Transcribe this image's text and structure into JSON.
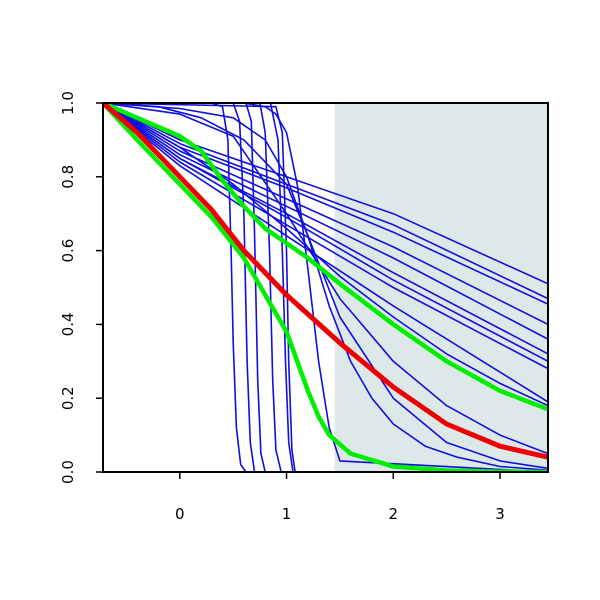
{
  "chart_data": {
    "type": "line",
    "title": "",
    "xlabel": "",
    "ylabel": "",
    "xlim": [
      -0.72,
      3.45
    ],
    "ylim": [
      0.0,
      1.0
    ],
    "x_ticks": [
      0,
      1,
      2,
      3
    ],
    "y_ticks": [
      0.0,
      0.2,
      0.4,
      0.6,
      0.8,
      1.0
    ],
    "x_tick_labels": [
      "0",
      "1",
      "2",
      "3"
    ],
    "y_tick_labels": [
      "0.0",
      "0.2",
      "0.4",
      "0.6",
      "0.8",
      "1.0"
    ],
    "grid": false,
    "shaded_region": {
      "x_start": 1.45,
      "x_end": 3.45,
      "color": "#dde9e9"
    },
    "series": [
      {
        "color": "#1010dd",
        "width": 1.6,
        "x": [
          -0.72,
          0.3,
          0.4,
          0.45,
          0.48,
          0.5,
          0.53,
          0.57,
          0.62,
          3.45
        ],
        "y": [
          1.0,
          1.0,
          0.99,
          0.9,
          0.6,
          0.35,
          0.12,
          0.02,
          0.0,
          0.0
        ]
      },
      {
        "color": "#1010dd",
        "width": 1.6,
        "x": [
          -0.72,
          0.5,
          0.56,
          0.6,
          0.63,
          0.66,
          0.7,
          3.45
        ],
        "y": [
          1.0,
          1.0,
          0.95,
          0.7,
          0.3,
          0.08,
          0.0,
          0.0
        ]
      },
      {
        "color": "#1010dd",
        "width": 1.6,
        "x": [
          -0.72,
          0.62,
          0.67,
          0.7,
          0.73,
          0.76,
          0.8,
          3.45
        ],
        "y": [
          1.0,
          1.0,
          0.95,
          0.65,
          0.25,
          0.05,
          0.0,
          0.0
        ]
      },
      {
        "color": "#1010dd",
        "width": 1.6,
        "x": [
          -0.72,
          0.75,
          0.8,
          0.84,
          0.87,
          0.9,
          0.95,
          3.45
        ],
        "y": [
          1.0,
          1.0,
          0.92,
          0.6,
          0.25,
          0.06,
          0.0,
          0.0
        ]
      },
      {
        "color": "#1010dd",
        "width": 1.6,
        "x": [
          -0.72,
          0.85,
          0.92,
          0.96,
          0.99,
          1.02,
          1.06,
          3.45
        ],
        "y": [
          1.0,
          1.0,
          0.9,
          0.6,
          0.3,
          0.08,
          0.0,
          0.0
        ]
      },
      {
        "color": "#1010dd",
        "width": 1.6,
        "x": [
          -0.72,
          0.9,
          0.96,
          1.0,
          1.02,
          1.05,
          1.08,
          3.45
        ],
        "y": [
          1.0,
          0.99,
          0.92,
          0.6,
          0.3,
          0.06,
          0.0,
          0.0
        ]
      },
      {
        "color": "#1010dd",
        "width": 1.6,
        "x": [
          -0.72,
          0.6,
          0.8,
          0.9,
          1.0,
          1.1,
          1.2,
          1.3,
          1.4,
          1.5,
          3.45
        ],
        "y": [
          1.0,
          1.0,
          0.99,
          0.97,
          0.92,
          0.78,
          0.55,
          0.3,
          0.12,
          0.03,
          0.0
        ]
      },
      {
        "color": "#1010dd",
        "width": 1.6,
        "x": [
          -0.72,
          -0.2,
          0.2,
          0.6,
          1.0,
          1.2,
          1.4,
          1.6,
          1.8,
          2.0,
          2.3,
          2.6,
          3.0,
          3.45
        ],
        "y": [
          1.0,
          0.99,
          0.96,
          0.9,
          0.78,
          0.64,
          0.45,
          0.3,
          0.2,
          0.13,
          0.07,
          0.04,
          0.015,
          0.005
        ]
      },
      {
        "color": "#1010dd",
        "width": 1.6,
        "x": [
          -0.72,
          0.0,
          1.0,
          2.0,
          3.45
        ],
        "y": [
          1.0,
          0.9,
          0.8,
          0.7,
          0.51
        ]
      },
      {
        "color": "#1010dd",
        "width": 1.6,
        "x": [
          -0.72,
          0.0,
          1.0,
          2.0,
          3.45
        ],
        "y": [
          1.0,
          0.89,
          0.78,
          0.67,
          0.47
        ]
      },
      {
        "color": "#1010dd",
        "width": 1.6,
        "x": [
          -0.72,
          0.0,
          1.0,
          2.0,
          3.45
        ],
        "y": [
          1.0,
          0.88,
          0.77,
          0.65,
          0.455
        ]
      },
      {
        "color": "#1010dd",
        "width": 1.6,
        "x": [
          -0.72,
          0.0,
          1.0,
          2.0,
          3.45
        ],
        "y": [
          1.0,
          0.87,
          0.74,
          0.61,
          0.4
        ]
      },
      {
        "color": "#1010dd",
        "width": 1.6,
        "x": [
          -0.72,
          0.0,
          1.0,
          2.0,
          3.45
        ],
        "y": [
          1.0,
          0.86,
          0.72,
          0.58,
          0.36
        ]
      },
      {
        "color": "#1010dd",
        "width": 1.6,
        "x": [
          -0.72,
          0.0,
          1.0,
          2.0,
          3.45
        ],
        "y": [
          1.0,
          0.85,
          0.7,
          0.54,
          0.32
        ]
      },
      {
        "color": "#1010dd",
        "width": 1.6,
        "x": [
          -0.72,
          0.0,
          1.0,
          2.0,
          3.45
        ],
        "y": [
          1.0,
          0.85,
          0.69,
          0.52,
          0.3
        ]
      },
      {
        "color": "#1010dd",
        "width": 1.6,
        "x": [
          -0.72,
          0.0,
          1.0,
          2.0,
          3.45
        ],
        "y": [
          1.0,
          0.84,
          0.67,
          0.5,
          0.28
        ]
      },
      {
        "color": "#1010dd",
        "width": 1.6,
        "x": [
          -0.72,
          0.0,
          1.0,
          2.0,
          3.45
        ],
        "y": [
          1.0,
          0.83,
          0.64,
          0.45,
          0.19
        ]
      },
      {
        "color": "#1010dd",
        "width": 1.6,
        "x": [
          -0.72,
          0.0,
          0.5,
          1.0,
          1.5,
          2.0,
          2.5,
          3.0,
          3.45
        ],
        "y": [
          1.0,
          0.88,
          0.78,
          0.66,
          0.53,
          0.42,
          0.32,
          0.24,
          0.18
        ]
      },
      {
        "color": "#1010dd",
        "width": 1.6,
        "x": [
          -0.72,
          0.0,
          0.5,
          1.0,
          1.5,
          2.0,
          2.5,
          3.0,
          3.45
        ],
        "y": [
          1.0,
          0.97,
          0.91,
          0.7,
          0.47,
          0.3,
          0.18,
          0.1,
          0.05
        ]
      },
      {
        "color": "#1010dd",
        "width": 1.6,
        "x": [
          -0.72,
          0.0,
          0.5,
          0.8,
          1.0,
          1.2,
          1.5,
          2.0,
          2.5,
          3.0,
          3.45
        ],
        "y": [
          1.0,
          0.985,
          0.96,
          0.9,
          0.8,
          0.64,
          0.42,
          0.2,
          0.08,
          0.03,
          0.01
        ]
      },
      {
        "color": "#00ee00",
        "width": 4.5,
        "x": [
          -0.72,
          -0.4,
          0.0,
          0.2,
          0.4,
          0.6,
          0.8,
          1.0,
          1.2,
          1.5,
          2.0,
          2.5,
          3.0,
          3.45
        ],
        "y": [
          1.0,
          0.96,
          0.91,
          0.87,
          0.79,
          0.72,
          0.66,
          0.62,
          0.58,
          0.51,
          0.4,
          0.3,
          0.22,
          0.17
        ]
      },
      {
        "color": "#00ee00",
        "width": 4.5,
        "x": [
          -0.72,
          -0.4,
          0.0,
          0.3,
          0.6,
          0.8,
          1.0,
          1.1,
          1.2,
          1.3,
          1.4,
          1.6,
          2.0,
          2.5,
          3.0,
          3.45
        ],
        "y": [
          1.0,
          0.9,
          0.78,
          0.69,
          0.58,
          0.48,
          0.38,
          0.3,
          0.22,
          0.15,
          0.1,
          0.05,
          0.015,
          0.004,
          0.001,
          0.0
        ]
      },
      {
        "color": "#ee0000",
        "width": 5,
        "x": [
          -0.72,
          -0.4,
          0.0,
          0.3,
          0.6,
          1.0,
          1.5,
          2.0,
          2.5,
          3.0,
          3.45
        ],
        "y": [
          1.0,
          0.92,
          0.8,
          0.71,
          0.6,
          0.48,
          0.35,
          0.23,
          0.13,
          0.07,
          0.04
        ]
      }
    ]
  }
}
